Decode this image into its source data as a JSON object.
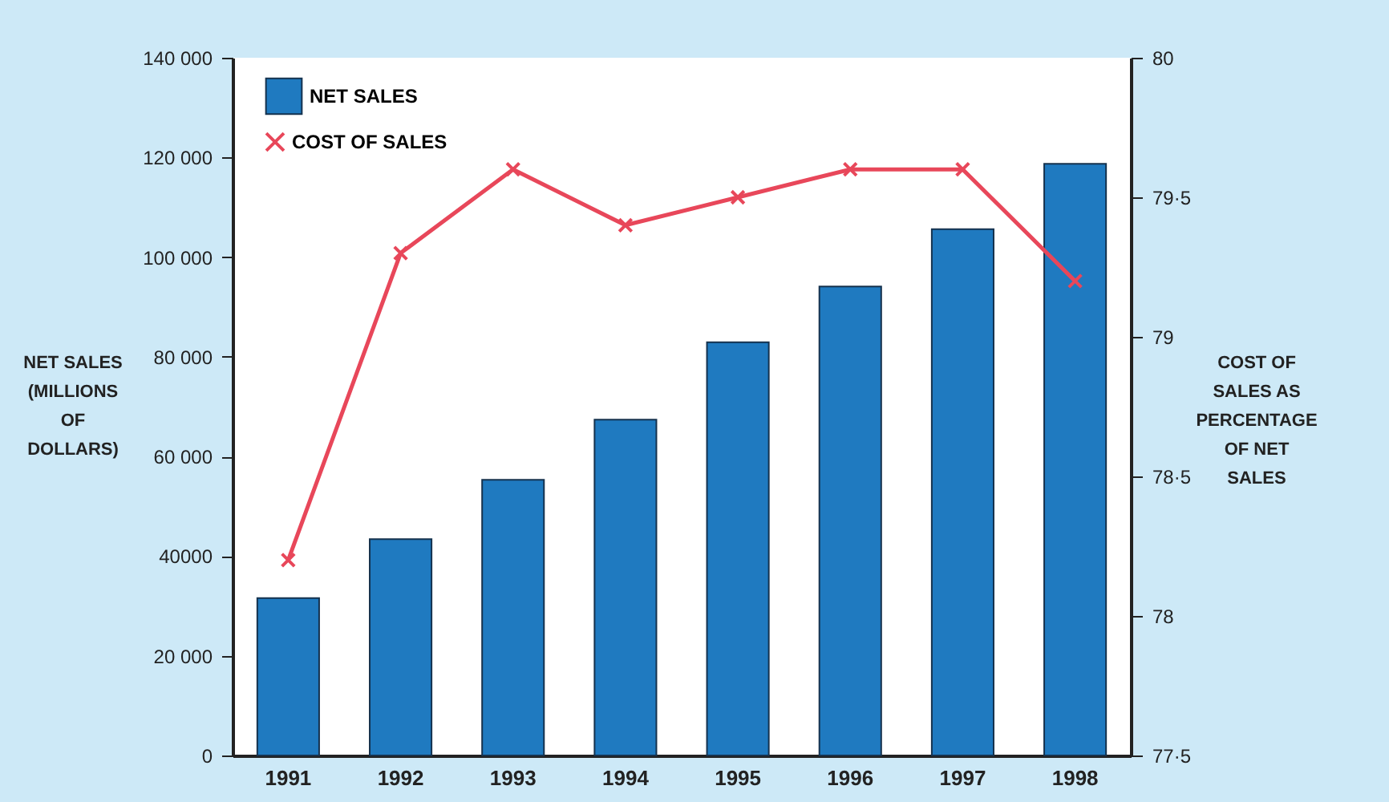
{
  "chart_data": {
    "type": "bar",
    "ylabel": "NET SALES (MILLIONS OF DOLLARS)",
    "y2label": "COST OF SALES AS PERCENTAGE OF NET SALES",
    "categories": [
      "1991",
      "1992",
      "1993",
      "1994",
      "1995",
      "1996",
      "1997",
      "1998"
    ],
    "series": [
      {
        "name": "NET SALES",
        "color": "#1f7ac0",
        "values": [
          31600,
          43400,
          55300,
          67400,
          82900,
          94100,
          105600,
          118700
        ]
      },
      {
        "name": "COST OF SALES",
        "type": "line",
        "axis": "y2",
        "color": "#e8475a",
        "values": [
          78.2,
          79.3,
          79.6,
          79.4,
          79.5,
          79.6,
          79.6,
          79.2
        ]
      }
    ],
    "ylim": [
      0,
      140000
    ],
    "yticks": [
      0,
      {
        "value": 20000,
        "label": "20 000"
      },
      40000,
      {
        "value": 60000,
        "label": "60 000"
      },
      {
        "value": 80000,
        "label": "80 000"
      },
      {
        "value": 100000,
        "label": "100 000"
      },
      {
        "value": 120000,
        "label": "120 000"
      },
      {
        "value": 140000,
        "label": "140 000"
      }
    ],
    "y2lim": [
      77.5,
      80
    ],
    "y2ticks": [
      {
        "value": 77.5,
        "label": "77·5"
      },
      78,
      {
        "value": 78.5,
        "label": "78·5"
      },
      79,
      {
        "value": 79.5,
        "label": "79·5"
      },
      80
    ],
    "grid": false,
    "legend": "top left",
    "marker": "cross",
    "line_style": "solid"
  }
}
